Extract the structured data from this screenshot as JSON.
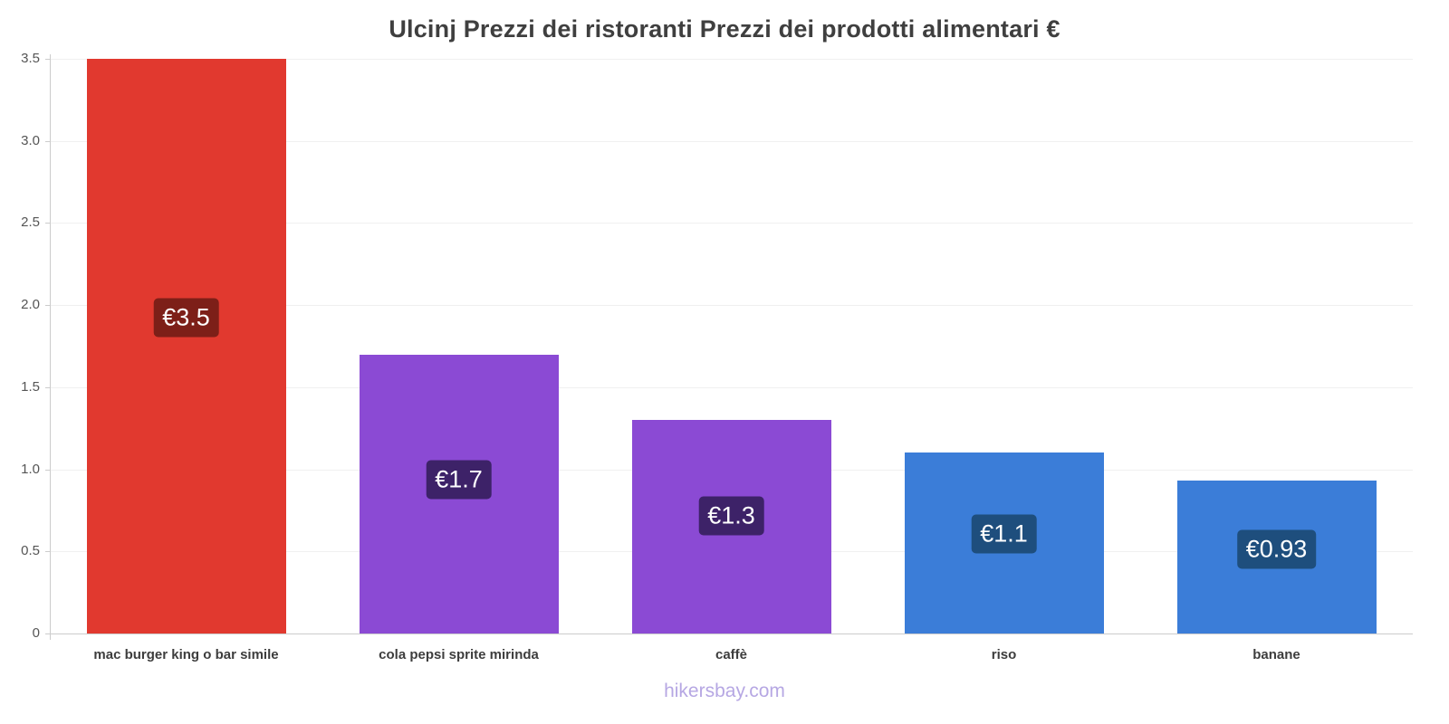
{
  "chart_data": {
    "type": "bar",
    "title": "Ulcinj Prezzi dei ristoranti Prezzi dei prodotti alimentari €",
    "categories": [
      "mac burger king o bar simile",
      "cola pepsi sprite mirinda",
      "caffè",
      "riso",
      "banane"
    ],
    "values": [
      3.5,
      1.7,
      1.3,
      1.1,
      0.93
    ],
    "value_labels": [
      "€3.5",
      "€1.7",
      "€1.3",
      "€1.1",
      "€0.93"
    ],
    "bar_colors": [
      "#e1392f",
      "#8b4ad4",
      "#8b4ad4",
      "#3b7dd8",
      "#3b7dd8"
    ],
    "value_label_bg": [
      "#7d1f18",
      "#3d2268",
      "#3d2268",
      "#1e4e7d",
      "#1e4e7d"
    ],
    "xlabel": "",
    "ylabel": "",
    "ylim": [
      0,
      3.5
    ],
    "yticks": [
      "0",
      "0.5",
      "1.0",
      "1.5",
      "2.0",
      "2.5",
      "3.0",
      "3.5"
    ],
    "grid": true,
    "legend": false
  },
  "footer": "hikersbay.com",
  "colors": {
    "background": "#ffffff",
    "title": "#3f3f3f",
    "axis": "#cccccc",
    "gridline": "#f0f0f0",
    "tick_label": "#555555",
    "category_label": "#3d3d3d",
    "footer": "#b6a7e3"
  }
}
